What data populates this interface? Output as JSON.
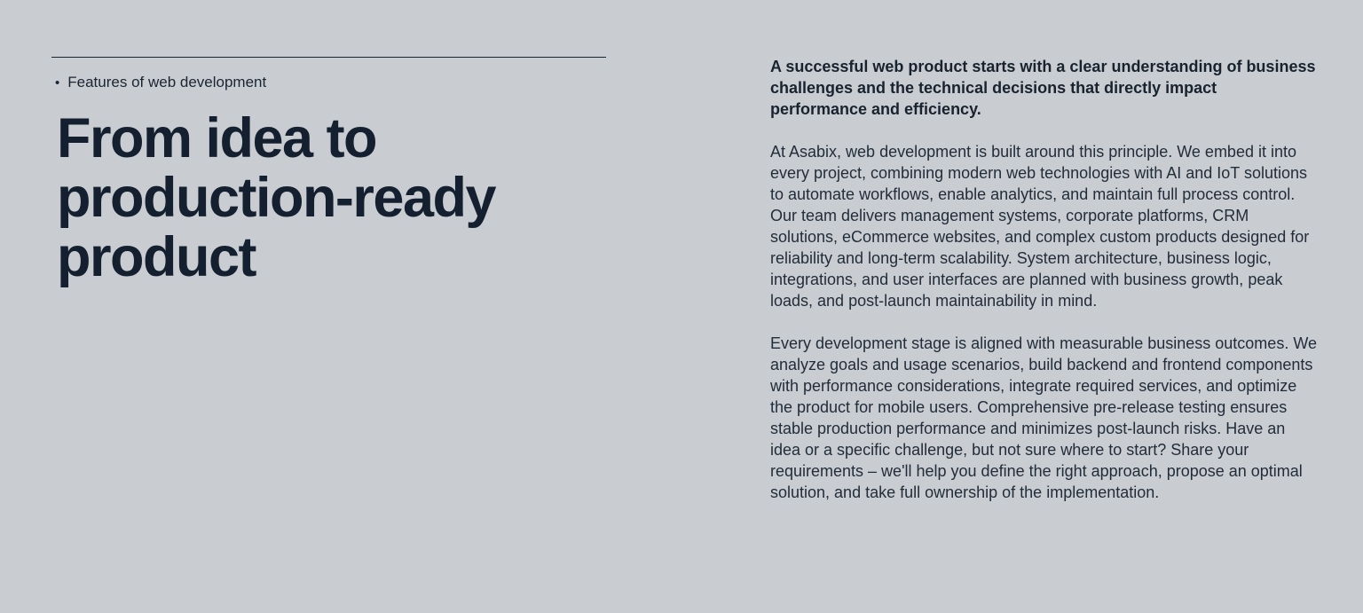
{
  "theme": {
    "background": "#c9cdd1",
    "heading_color": "#14202f",
    "body_color": "#222d3b",
    "divider_color": "#1a2534"
  },
  "left_column": {
    "bullet": "•",
    "eyebrow": "Features of web development",
    "heading": "From idea to production-ready product"
  },
  "right_column": {
    "intro": "A successful web product starts with a clear understanding of business challenges and the technical decisions that directly impact performance and efficiency.",
    "paragraphs": [
      "At Asabix, web development is built around this principle. We embed it into every project, combining modern web technologies with AI and IoT solutions to automate workflows, enable analytics, and maintain full process control. Our team delivers management systems, corporate platforms, CRM solutions, eCommerce websites, and complex custom products designed for reliability and long-term scalability. System architecture, business logic, integrations, and user interfaces are planned with business growth, peak loads, and post-launch maintainability in mind.",
      "Every development stage is aligned with measurable business outcomes. We analyze goals and usage scenarios, build backend and frontend components with performance considerations, integrate required services, and optimize the product for mobile users. Comprehensive pre-release testing ensures stable production performance and minimizes post-launch risks. Have an idea or a specific challenge, but not sure where to start? Share your requirements – we'll help you define the right approach, propose an optimal solution, and take full ownership of the implementation."
    ]
  }
}
